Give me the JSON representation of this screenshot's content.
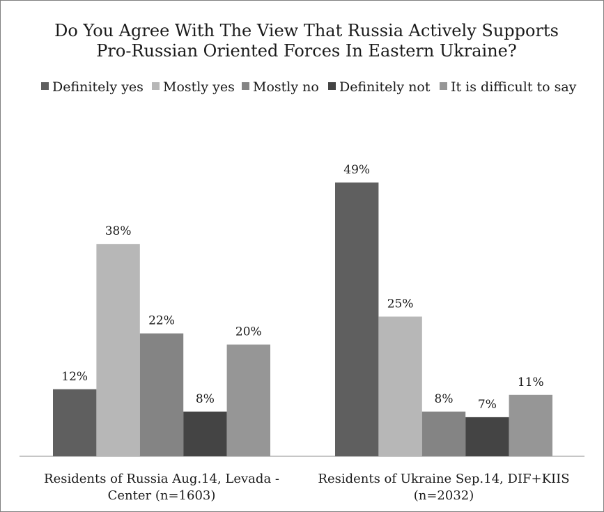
{
  "chart_data": {
    "type": "bar",
    "title_lines": [
      "Do You Agree With The View That Russia Actively Supports",
      "Pro-Russian Oriented Forces In Eastern Ukraine?"
    ],
    "categories": [
      [
        "Residents of Russia Aug.14, Levada -",
        "Center (n=1603)"
      ],
      [
        "Residents of Ukraine Sep.14, DIF+KIIS",
        "(n=2032)"
      ]
    ],
    "series": [
      {
        "name": "Definitely yes",
        "color": "#5f5f5f",
        "values": [
          12,
          49
        ],
        "labels": [
          "12%",
          "49%"
        ]
      },
      {
        "name": "Mostly yes",
        "color": "#b7b7b7",
        "values": [
          38,
          25
        ],
        "labels": [
          "38%",
          "25%"
        ]
      },
      {
        "name": "Mostly no",
        "color": "#848484",
        "values": [
          22,
          8
        ],
        "labels": [
          "22%",
          "8%"
        ]
      },
      {
        "name": "Definitely not",
        "color": "#444444",
        "values": [
          8,
          7
        ],
        "labels": [
          "8%",
          "7%"
        ]
      },
      {
        "name": "It is difficult to say",
        "color": "#969696",
        "values": [
          20,
          11
        ],
        "labels": [
          "20%",
          "11%"
        ]
      }
    ],
    "ylim": [
      0,
      49
    ],
    "legend_position": "top",
    "grid": false
  }
}
